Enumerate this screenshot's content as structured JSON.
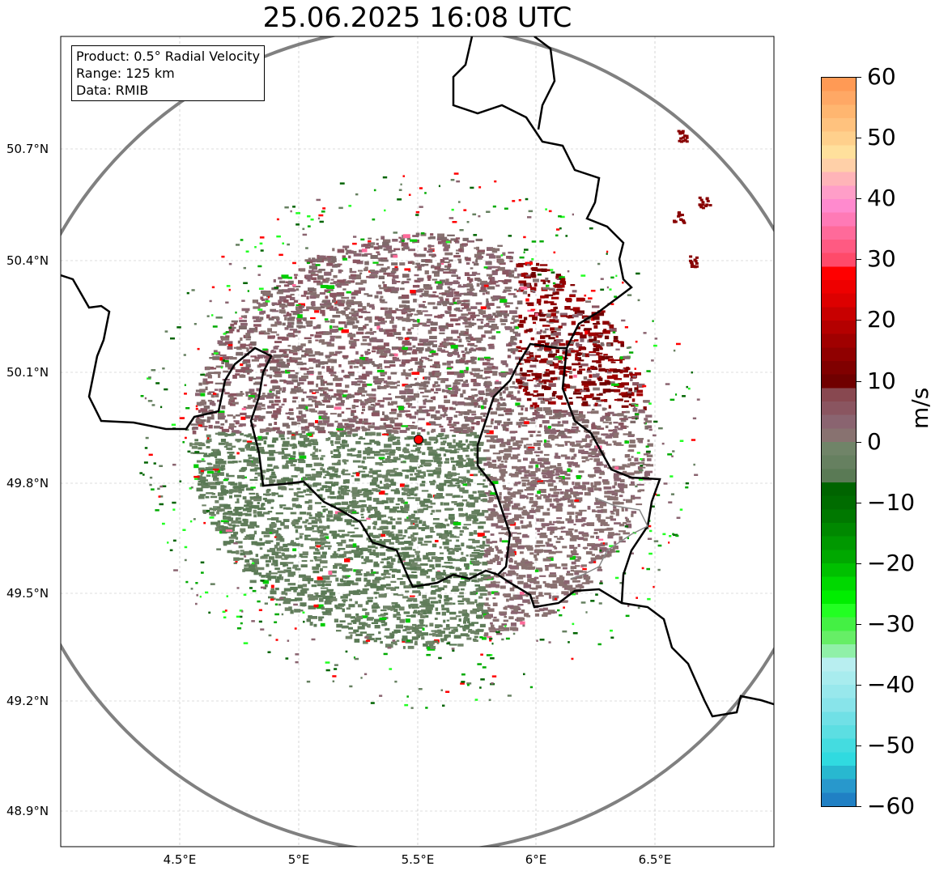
{
  "title": "25.06.2025 16:08 UTC",
  "info_box": [
    "Product: 0.5° Radial Velocity",
    "Range: 125 km",
    "Data: RMIB"
  ],
  "x_ticks": [
    "4.5°E",
    "5°E",
    "5.5°E",
    "6°E",
    "6.5°E"
  ],
  "y_ticks": [
    "50.7°N",
    "50.4°N",
    "50.1°N",
    "49.8°N",
    "49.5°N",
    "49.2°N",
    "48.9°N"
  ],
  "radar_site": {
    "lon": 5.505,
    "lat": 49.914,
    "color": "#ff0000"
  },
  "range_km": 125,
  "colorbar": {
    "label": "m/s",
    "min": -60,
    "max": 60,
    "ticks": [
      "60",
      "50",
      "40",
      "30",
      "20",
      "10",
      "0",
      "−10",
      "−20",
      "−30",
      "−40",
      "−50",
      "−60"
    ],
    "colors_top_to_bottom": [
      "#ff9a55",
      "#ffa865",
      "#ffb670",
      "#ffc27e",
      "#ffd08c",
      "#ffe09c",
      "#ffd0a8",
      "#ffb4b8",
      "#ff9ec8",
      "#ff8ace",
      "#ff7ab6",
      "#ff6a9a",
      "#ff5a82",
      "#ff4a6a",
      "#ff0000",
      "#ee0000",
      "#dd0000",
      "#c80000",
      "#b40000",
      "#a00000",
      "#900000",
      "#800000",
      "#700000",
      "#884850",
      "#8a5560",
      "#8a6470",
      "#887270",
      "#708468",
      "#668060",
      "#5a7a55",
      "#006400",
      "#006c00",
      "#007800",
      "#008800",
      "#009800",
      "#00a800",
      "#00c000",
      "#00d800",
      "#00ee00",
      "#22ff22",
      "#44f044",
      "#66ee66",
      "#90f0a8",
      "#b8eef0",
      "#a8ecee",
      "#98e8ec",
      "#88e4ea",
      "#70e0e6",
      "#5cdee2",
      "#44dce0",
      "#30dae0",
      "#28b8d0",
      "#2898cc",
      "#2080c4"
    ]
  }
}
